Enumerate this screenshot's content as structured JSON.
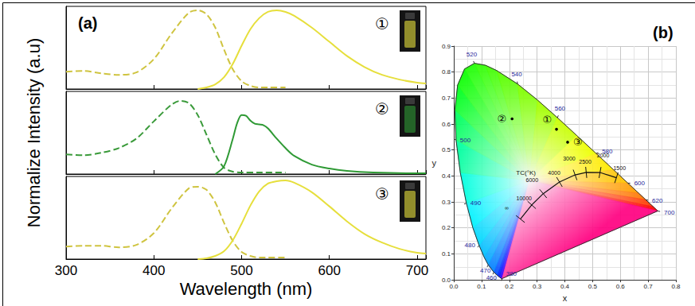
{
  "chart_data": [
    {
      "type": "line",
      "title": "(a)",
      "annotation": "①",
      "xlim": [
        300,
        710
      ],
      "xticks": [
        300,
        400,
        500,
        600,
        700
      ],
      "ylim": [
        0,
        1.05
      ],
      "tick_labels": false,
      "grid": false,
      "series": [
        {
          "color": "#cfc440",
          "line_style": "dashed",
          "x": [
            300,
            320,
            340,
            360,
            380,
            400,
            420,
            440,
            450,
            460,
            470,
            480,
            490,
            500,
            510,
            520,
            530,
            550
          ],
          "values": [
            0.22,
            0.23,
            0.2,
            0.18,
            0.21,
            0.38,
            0.7,
            0.97,
            1.0,
            0.95,
            0.78,
            0.5,
            0.25,
            0.1,
            0.04,
            0.02,
            0.02,
            0.02
          ]
        },
        {
          "color": "#e6df3c",
          "line_style": "solid",
          "x": [
            450,
            460,
            470,
            480,
            490,
            500,
            510,
            520,
            530,
            540,
            550,
            560,
            580,
            600,
            620,
            640,
            660,
            680,
            700,
            710
          ],
          "values": [
            0.0,
            0.02,
            0.06,
            0.15,
            0.32,
            0.55,
            0.76,
            0.9,
            0.98,
            1.0,
            0.98,
            0.93,
            0.78,
            0.6,
            0.42,
            0.28,
            0.18,
            0.12,
            0.08,
            0.07
          ]
        }
      ]
    },
    {
      "type": "line",
      "annotation": "②",
      "ylabel": "Normalize Intensity (a.u)",
      "xlim": [
        300,
        710
      ],
      "xticks": [
        300,
        400,
        500,
        600,
        700
      ],
      "ylim": [
        0,
        1.05
      ],
      "tick_labels": false,
      "grid": false,
      "series": [
        {
          "color": "#3a9a3a",
          "line_style": "dashed",
          "x": [
            300,
            320,
            340,
            360,
            380,
            400,
            420,
            430,
            440,
            450,
            460,
            470,
            480,
            490,
            500,
            520,
            550
          ],
          "values": [
            0.25,
            0.24,
            0.27,
            0.33,
            0.45,
            0.67,
            0.88,
            0.93,
            0.9,
            0.75,
            0.5,
            0.25,
            0.08,
            0.03,
            0.02,
            0.02,
            0.02
          ]
        },
        {
          "color": "#2f9a35",
          "line_style": "solid",
          "x": [
            470,
            480,
            490,
            495,
            500,
            505,
            510,
            515,
            520,
            525,
            530,
            540,
            550,
            560,
            580,
            600,
            620,
            650,
            700,
            710
          ],
          "values": [
            0.0,
            0.1,
            0.45,
            0.65,
            0.75,
            0.74,
            0.68,
            0.64,
            0.63,
            0.62,
            0.58,
            0.45,
            0.33,
            0.23,
            0.12,
            0.07,
            0.04,
            0.02,
            0.01,
            0.01
          ]
        }
      ]
    },
    {
      "type": "line",
      "annotation": "③",
      "xlabel": "Wavelength (nm)",
      "xlim": [
        300,
        710
      ],
      "xticks": [
        300,
        400,
        500,
        600,
        700
      ],
      "ylim": [
        0,
        1.05
      ],
      "tick_labels": "x",
      "grid": false,
      "series": [
        {
          "color": "#cfc440",
          "line_style": "dashed",
          "x": [
            300,
            320,
            340,
            360,
            380,
            400,
            420,
            440,
            450,
            460,
            470,
            480,
            490,
            500,
            510,
            520,
            530,
            550
          ],
          "values": [
            0.16,
            0.17,
            0.17,
            0.15,
            0.18,
            0.33,
            0.64,
            0.9,
            0.92,
            0.88,
            0.72,
            0.46,
            0.23,
            0.09,
            0.04,
            0.02,
            0.02,
            0.02
          ]
        },
        {
          "color": "#e6df3c",
          "line_style": "solid",
          "x": [
            450,
            460,
            470,
            480,
            490,
            500,
            510,
            520,
            530,
            540,
            550,
            560,
            580,
            600,
            620,
            640,
            660,
            680,
            700,
            710
          ],
          "values": [
            0.0,
            0.01,
            0.04,
            0.1,
            0.24,
            0.45,
            0.68,
            0.86,
            0.96,
            0.99,
            1.0,
            0.97,
            0.85,
            0.67,
            0.48,
            0.32,
            0.21,
            0.13,
            0.08,
            0.07
          ]
        }
      ]
    },
    {
      "type": "chromaticity",
      "title": "(b)",
      "xlabel": "x",
      "ylabel": "y",
      "xlim": [
        0,
        0.8
      ],
      "xticks": [
        {
          "value": 0,
          "label": "0.0"
        },
        {
          "value": 0.1,
          "label": "0.1"
        },
        {
          "value": 0.2,
          "label": "0.2"
        },
        {
          "value": 0.3,
          "label": "0.3"
        },
        {
          "value": 0.4,
          "label": "0.4"
        },
        {
          "value": 0.5,
          "label": "0.5"
        },
        {
          "value": 0.6,
          "label": "0.6"
        },
        {
          "value": 0.7,
          "label": "0.7"
        },
        {
          "value": 0.8,
          "label": "0.8"
        }
      ],
      "ylim": [
        0,
        0.9
      ],
      "yticks": [
        {
          "value": 0,
          "label": "0.0"
        },
        {
          "value": 0.1,
          "label": "0.1"
        },
        {
          "value": 0.2,
          "label": "0.2"
        },
        {
          "value": 0.3,
          "label": "0.3"
        },
        {
          "value": 0.4,
          "label": "0.4"
        },
        {
          "value": 0.5,
          "label": "0.5"
        },
        {
          "value": 0.6,
          "label": "0.6"
        },
        {
          "value": 0.7,
          "label": "0.7"
        },
        {
          "value": 0.8,
          "label": "0.8"
        },
        {
          "value": 0.9,
          "label": "0.9"
        }
      ],
      "grid": true,
      "locus": {
        "wavelength": [
          380,
          400,
          420,
          440,
          450,
          460,
          470,
          475,
          480,
          485,
          490,
          495,
          500,
          505,
          510,
          515,
          520,
          525,
          530,
          540,
          550,
          560,
          570,
          580,
          590,
          600,
          610,
          620,
          640,
          660,
          700
        ],
        "x": [
          0.1741,
          0.1733,
          0.1714,
          0.1644,
          0.1566,
          0.144,
          0.1241,
          0.1096,
          0.0913,
          0.0687,
          0.0454,
          0.0235,
          0.0082,
          0.0039,
          0.0139,
          0.0389,
          0.0743,
          0.1142,
          0.1547,
          0.2296,
          0.3016,
          0.3731,
          0.4441,
          0.5125,
          0.5752,
          0.627,
          0.6658,
          0.6915,
          0.719,
          0.73,
          0.7347
        ],
        "y": [
          0.005,
          0.0048,
          0.0051,
          0.0109,
          0.0177,
          0.0297,
          0.0578,
          0.0868,
          0.1327,
          0.2007,
          0.295,
          0.4127,
          0.5384,
          0.6548,
          0.7502,
          0.812,
          0.8338,
          0.8262,
          0.8059,
          0.7543,
          0.6923,
          0.6245,
          0.5547,
          0.4866,
          0.4242,
          0.3725,
          0.334,
          0.3083,
          0.2809,
          0.27,
          0.2653
        ]
      },
      "locus_labels": [
        380,
        460,
        470,
        480,
        490,
        500,
        520,
        540,
        560,
        580,
        600,
        620,
        700
      ],
      "planckian": {
        "label": "TC(°K)",
        "points": [
          {
            "label": "1500",
            "x": 0.5857,
            "y": 0.3931
          },
          {
            "label": "2000",
            "x": 0.5267,
            "y": 0.4133
          },
          {
            "label": "2500",
            "x": 0.477,
            "y": 0.4137
          },
          {
            "label": "3000",
            "x": 0.4369,
            "y": 0.4041
          },
          {
            "label": "4000",
            "x": 0.3805,
            "y": 0.3768
          },
          {
            "label": "6000",
            "x": 0.3221,
            "y": 0.3318
          },
          {
            "label": "10000",
            "x": 0.2807,
            "y": 0.2884
          },
          {
            "label": "∞",
            "x": 0.2399,
            "y": 0.2342
          }
        ]
      },
      "points": [
        {
          "label": "①",
          "x": 0.37,
          "y": 0.58
        },
        {
          "label": "②",
          "x": 0.21,
          "y": 0.62
        },
        {
          "label": "③",
          "x": 0.41,
          "y": 0.53
        }
      ]
    }
  ]
}
